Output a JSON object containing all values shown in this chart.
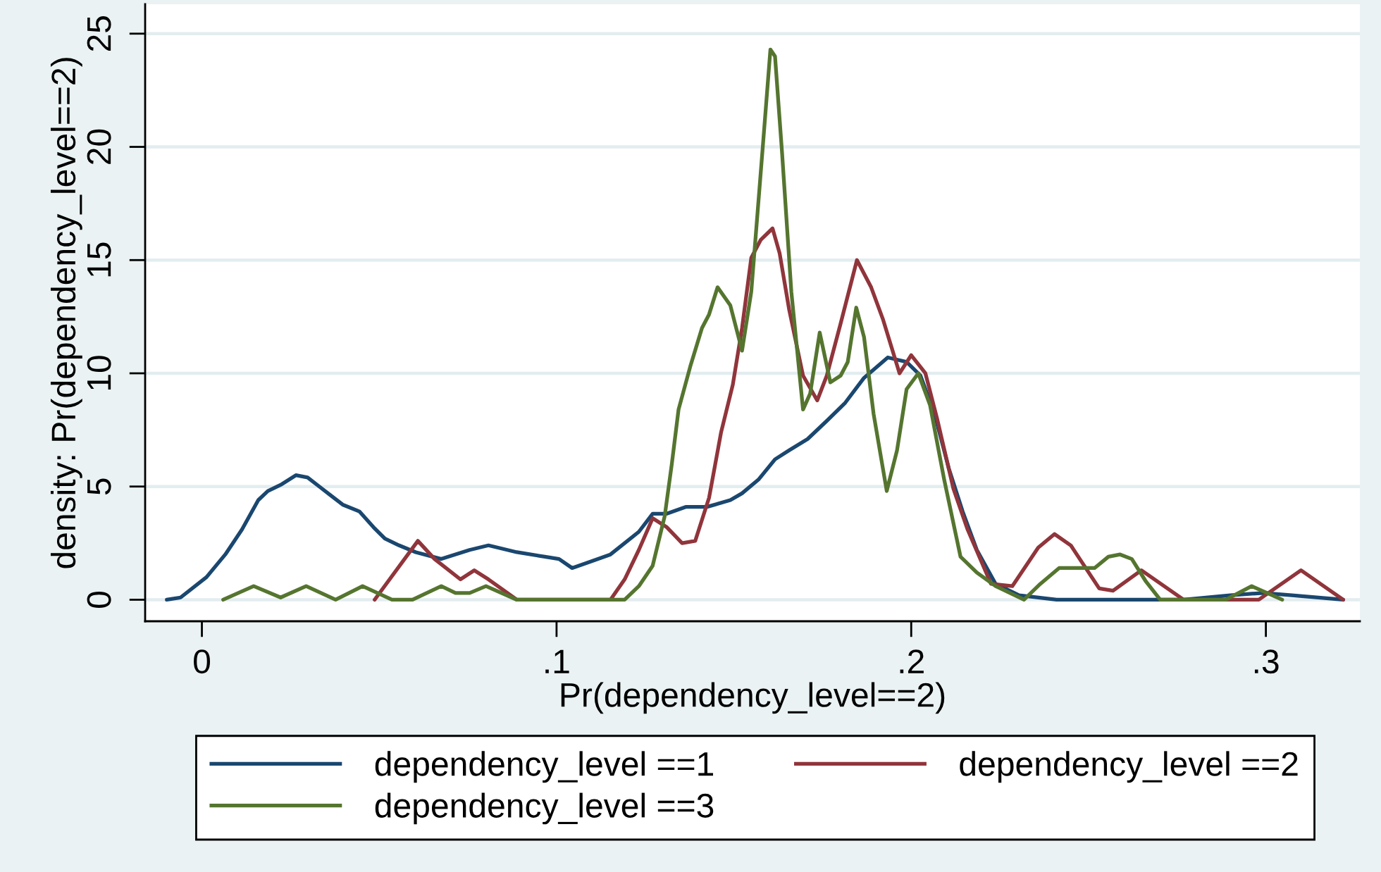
{
  "chart_data": {
    "type": "line",
    "xlabel": "Pr(dependency_level==2)",
    "ylabel": "density: Pr(dependency_level==2)",
    "xlim": [
      -0.016,
      0.3265
    ],
    "ylim": [
      -0.95,
      26.3
    ],
    "xticks": [
      0,
      {
        "value": 0.1,
        "label": ".1"
      },
      {
        "value": 0.2,
        "label": ".2"
      },
      {
        "value": 0.3,
        "label": ".3"
      }
    ],
    "yticks": [
      0,
      5,
      10,
      15,
      20,
      25
    ],
    "grid": "y",
    "legend": "bottom",
    "line_style": "solid",
    "series": [
      {
        "name": "dependency_level ==1",
        "color": "#1a476f",
        "x": [
          -0.0099,
          -0.006,
          0.0013,
          0.0066,
          0.0113,
          0.0159,
          0.0186,
          0.0225,
          0.0265,
          0.0298,
          0.0331,
          0.0364,
          0.0397,
          0.0444,
          0.0484,
          0.0516,
          0.0556,
          0.0603,
          0.0675,
          0.0755,
          0.0808,
          0.0888,
          0.0967,
          0.1007,
          0.1044,
          0.1099,
          0.1152,
          0.1232,
          0.1271,
          0.1311,
          0.1364,
          0.1424,
          0.149,
          0.1523,
          0.1569,
          0.1616,
          0.1656,
          0.1708,
          0.1762,
          0.1814,
          0.1867,
          0.1934,
          0.1987,
          0.2026,
          0.2066,
          0.2106,
          0.2145,
          0.2185,
          0.2238,
          0.2304,
          0.241,
          0.2768,
          0.29,
          0.2993,
          0.3073,
          0.3218
        ],
        "values": [
          0,
          0.1,
          1.0,
          2.0,
          3.1,
          4.4,
          4.8,
          5.1,
          5.5,
          5.4,
          5.0,
          4.6,
          4.2,
          3.9,
          3.2,
          2.7,
          2.4,
          2.1,
          1.8,
          2.2,
          2.4,
          2.1,
          1.9,
          1.8,
          1.4,
          1.7,
          2.0,
          3.0,
          3.8,
          3.8,
          4.1,
          4.1,
          4.4,
          4.7,
          5.3,
          6.2,
          6.6,
          7.1,
          7.9,
          8.7,
          9.8,
          10.7,
          10.5,
          9.9,
          8.2,
          5.8,
          3.9,
          2.2,
          0.7,
          0.2,
          0,
          0,
          0.2,
          0.3,
          0.2,
          0
        ]
      },
      {
        "name": "dependency_level ==2",
        "color": "#90353b",
        "x": [
          0.0487,
          0.0609,
          0.0656,
          0.0729,
          0.0768,
          0.0808,
          0.0888,
          0.1152,
          0.1192,
          0.1232,
          0.1271,
          0.1311,
          0.1354,
          0.1391,
          0.143,
          0.1464,
          0.1497,
          0.1523,
          0.1549,
          0.1576,
          0.1609,
          0.1629,
          0.1656,
          0.1695,
          0.1735,
          0.1762,
          0.1801,
          0.1847,
          0.1887,
          0.192,
          0.1967,
          0.2,
          0.204,
          0.2073,
          0.2119,
          0.2159,
          0.2225,
          0.2285,
          0.2358,
          0.2404,
          0.245,
          0.253,
          0.2569,
          0.2649,
          0.2768,
          0.298,
          0.3099,
          0.3218
        ],
        "values": [
          0,
          2.6,
          1.8,
          0.9,
          1.3,
          0.9,
          0,
          0,
          0.9,
          2.2,
          3.6,
          3.2,
          2.5,
          2.6,
          4.5,
          7.4,
          9.5,
          12.0,
          15.1,
          15.9,
          16.4,
          15.3,
          12.8,
          9.9,
          8.8,
          9.9,
          12.2,
          15.0,
          13.8,
          12.4,
          10.0,
          10.8,
          10.0,
          8.0,
          4.9,
          3.1,
          0.7,
          0.6,
          2.3,
          2.9,
          2.4,
          0.5,
          0.4,
          1.3,
          0,
          0,
          1.3,
          0
        ]
      },
      {
        "name": "dependency_level ==3",
        "color": "#55752f",
        "x": [
          0.006,
          0.0146,
          0.0222,
          0.0294,
          0.0377,
          0.0453,
          0.0536,
          0.0594,
          0.0675,
          0.0715,
          0.0755,
          0.0801,
          0.0888,
          0.1192,
          0.1232,
          0.1271,
          0.1305,
          0.1325,
          0.1344,
          0.1377,
          0.141,
          0.143,
          0.1454,
          0.149,
          0.1523,
          0.1549,
          0.1583,
          0.1603,
          0.1616,
          0.1636,
          0.1662,
          0.1695,
          0.1715,
          0.1742,
          0.1772,
          0.1801,
          0.1821,
          0.1845,
          0.1867,
          0.1894,
          0.1931,
          0.196,
          0.1987,
          0.202,
          0.2053,
          0.2093,
          0.2139,
          0.2185,
          0.2238,
          0.2318,
          0.2364,
          0.2417,
          0.2517,
          0.2556,
          0.2589,
          0.2622,
          0.2662,
          0.2702,
          0.2887,
          0.296,
          0.3046
        ],
        "values": [
          0,
          0.6,
          0.1,
          0.6,
          0,
          0.6,
          0,
          0,
          0.6,
          0.3,
          0.3,
          0.6,
          0,
          0,
          0.6,
          1.5,
          3.7,
          6.0,
          8.4,
          10.3,
          12.0,
          12.6,
          13.8,
          13.0,
          11.0,
          13.6,
          20.3,
          24.3,
          24.0,
          19.7,
          13.6,
          8.4,
          9.1,
          11.8,
          9.6,
          9.9,
          10.5,
          12.9,
          11.6,
          8.2,
          4.8,
          6.6,
          9.3,
          10.0,
          8.6,
          5.3,
          1.9,
          1.2,
          0.6,
          0,
          0.7,
          1.4,
          1.4,
          1.9,
          2.0,
          1.8,
          0.8,
          0,
          0,
          0.6,
          0
        ]
      }
    ]
  }
}
